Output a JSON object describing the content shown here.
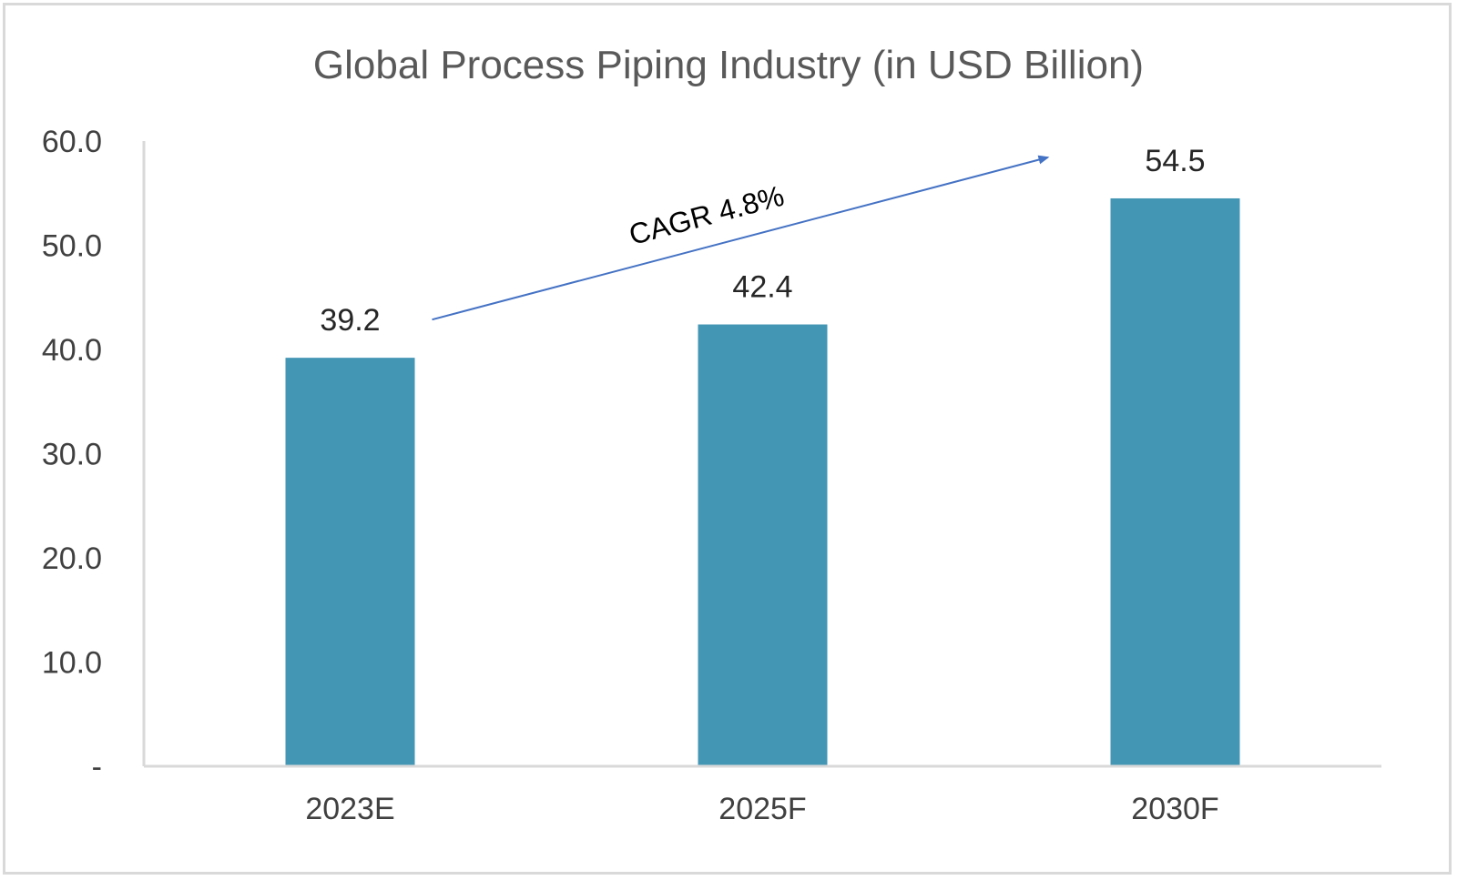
{
  "chart_data": {
    "type": "bar",
    "title": "Global Process Piping Industry (in USD Billion)",
    "categories": [
      "2023E",
      "2025F",
      "2030F"
    ],
    "values": [
      39.2,
      42.4,
      54.5
    ],
    "value_labels": [
      "39.2",
      "42.4",
      "54.5"
    ],
    "y_ticks": [
      "-",
      "10.0",
      "20.0",
      "30.0",
      "40.0",
      "50.0",
      "60.0"
    ],
    "ylim": [
      0,
      60
    ],
    "grid": false,
    "legend": "none",
    "bar_color": "#4396b4",
    "annotation": {
      "text": "CAGR 4.8%",
      "arrow_color": "#4472c4",
      "from_category": "2023E",
      "to_category": "2030F"
    }
  }
}
